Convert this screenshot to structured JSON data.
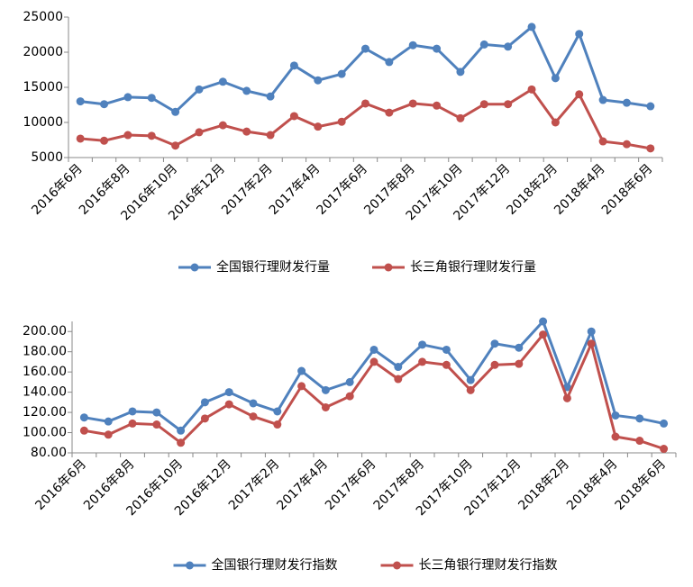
{
  "chart_data": [
    {
      "type": "line",
      "categories": [
        "2016年6月",
        null,
        "2016年8月",
        null,
        "2016年10月",
        null,
        "2016年12月",
        null,
        "2017年2月",
        null,
        "2017年4月",
        null,
        "2017年6月",
        null,
        "2017年8月",
        null,
        "2017年10月",
        null,
        "2017年12月",
        null,
        "2018年2月",
        null,
        "2018年4月",
        null,
        "2018年6月"
      ],
      "series": [
        {
          "name": "全国银行理财发行量",
          "color": "#4f81bd",
          "values": [
            13000,
            12600,
            13600,
            13500,
            11500,
            14700,
            15800,
            14500,
            13700,
            18100,
            16000,
            16900,
            20500,
            18600,
            21000,
            20500,
            17200,
            21100,
            20800,
            23600,
            16300,
            22600,
            13200,
            12800,
            12300
          ]
        },
        {
          "name": "长三角银行理财发行量",
          "color": "#c0504d",
          "values": [
            7700,
            7400,
            8200,
            8100,
            6700,
            8600,
            9600,
            8700,
            8200,
            10900,
            9400,
            10100,
            12700,
            11400,
            12700,
            12400,
            10600,
            12600,
            12600,
            14700,
            10000,
            14000,
            7300,
            6900,
            6300
          ]
        }
      ],
      "ylim": [
        5000,
        25000
      ],
      "yticks": [
        5000,
        10000,
        15000,
        20000,
        25000
      ],
      "legend": "bottom"
    },
    {
      "type": "line",
      "categories": [
        "2016年6月",
        null,
        "2016年8月",
        null,
        "2016年10月",
        null,
        "2016年12月",
        null,
        "2017年2月",
        null,
        "2017年4月",
        null,
        "2017年6月",
        null,
        "2017年8月",
        null,
        "2017年10月",
        null,
        "2017年12月",
        null,
        "2018年2月",
        null,
        "2018年4月",
        null,
        "2018年6月"
      ],
      "series": [
        {
          "name": "全国银行理财发行指数",
          "color": "#4f81bd",
          "values": [
            115,
            111,
            121,
            120,
            102,
            130,
            140,
            129,
            121,
            161,
            142,
            150,
            182,
            165,
            187,
            182,
            152,
            188,
            184,
            210,
            145,
            200,
            117,
            114,
            109
          ]
        },
        {
          "name": "长三角银行理财发行指数",
          "color": "#c0504d",
          "values": [
            102,
            98,
            109,
            108,
            90,
            114,
            128,
            116,
            108,
            146,
            125,
            136,
            170,
            153,
            170,
            167,
            142,
            167,
            168,
            197,
            134,
            188,
            96,
            92,
            84
          ]
        }
      ],
      "ylim": [
        80,
        210
      ],
      "yticks": [
        {
          "value": 80,
          "label": "80.00"
        },
        {
          "value": 100,
          "label": "100.00"
        },
        {
          "value": 120,
          "label": "120.00"
        },
        {
          "value": 140,
          "label": "140.00"
        },
        {
          "value": 160,
          "label": "160.00"
        },
        {
          "value": 180,
          "label": "180.00"
        },
        {
          "value": 200,
          "label": "200.00"
        }
      ],
      "legend": "bottom"
    }
  ]
}
